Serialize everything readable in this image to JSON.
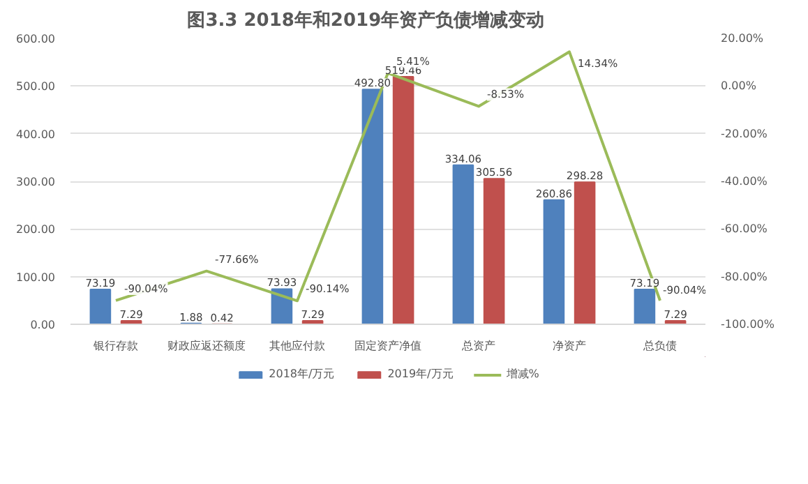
{
  "chart_data": {
    "type": "bar",
    "title": "图3.3        2018年和2019年资产负债增减变动",
    "categories": [
      "银行存款",
      "财政应返还额度",
      "其他应付款",
      "固定资产净值",
      "总资产",
      "净资产",
      "总负债"
    ],
    "series": [
      {
        "name": "2018年/万元",
        "color": "#4f81bd",
        "values": [
          73.19,
          1.88,
          73.93,
          492.8,
          334.06,
          260.86,
          73.19
        ],
        "value_labels": [
          "73.19",
          "1.88",
          "73.93",
          "492.80",
          "334.06",
          "260.86",
          "73.19"
        ]
      },
      {
        "name": "2019年/万元",
        "color": "#c0504d",
        "values": [
          7.29,
          0.42,
          7.29,
          519.46,
          305.56,
          298.28,
          7.29
        ],
        "value_labels": [
          "7.29",
          "0.42",
          "7.29",
          "519.46",
          "305.56",
          "298.28",
          "7.29"
        ]
      },
      {
        "name": "增减%",
        "type": "line",
        "axis": "y2",
        "color": "#9bbb59",
        "values": [
          -90.04,
          -77.66,
          -90.14,
          5.41,
          -8.53,
          14.34,
          -90.04
        ],
        "value_labels": [
          "-90.04%",
          "-77.66%",
          "-90.14%",
          "5.41%",
          "-8.53%",
          "14.34%",
          "-90.04%"
        ]
      }
    ],
    "ylim": [
      0,
      600
    ],
    "yticks": [
      {
        "value": 0,
        "label": "0.00"
      },
      {
        "value": 100,
        "label": "100.00"
      },
      {
        "value": 200,
        "label": "200.00"
      },
      {
        "value": 300,
        "label": "300.00"
      },
      {
        "value": 400,
        "label": "400.00"
      },
      {
        "value": 500,
        "label": "500.00"
      },
      {
        "value": 600,
        "label": "600.00"
      }
    ],
    "y2lim": [
      -100,
      20
    ],
    "y2ticks": [
      {
        "value": -100,
        "label": "-100.00%"
      },
      {
        "value": -80,
        "label": "-80.00%"
      },
      {
        "value": -60,
        "label": "-60.00%"
      },
      {
        "value": -40,
        "label": "-40.00%"
      },
      {
        "value": -20,
        "label": "-20.00%"
      },
      {
        "value": 0,
        "label": "0.00%"
      },
      {
        "value": 20,
        "label": "20.00%"
      }
    ],
    "grid": "y",
    "legend": "bottom"
  }
}
